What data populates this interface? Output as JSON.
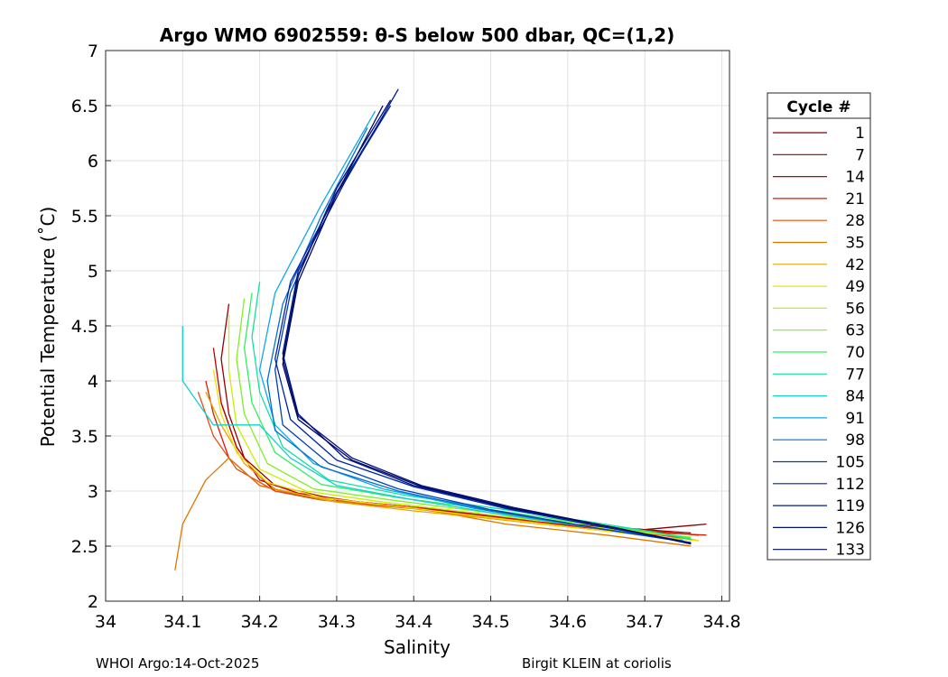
{
  "chart_data": {
    "type": "line",
    "title": "Argo WMO 6902559: θ-S below 500 dbar,  QC=(1,2)",
    "xlabel": "Salinity",
    "ylabel": "Potential Temperature (˚C)",
    "xlim": [
      34.0,
      34.81
    ],
    "ylim": [
      2.0,
      7.0
    ],
    "xticks": [
      "34",
      "34.1",
      "34.2",
      "34.3",
      "34.4",
      "34.5",
      "34.6",
      "34.7",
      "34.8"
    ],
    "yticks": [
      "2",
      "2.5",
      "3",
      "3.5",
      "4",
      "4.5",
      "5",
      "5.5",
      "6",
      "6.5",
      "7"
    ],
    "grid": true,
    "legend_title": "Cycle #",
    "legend_position": "outside-right",
    "legend": [
      {
        "label": "1",
        "color": "#800000"
      },
      {
        "label": "7",
        "color": "#990000"
      },
      {
        "label": "14",
        "color": "#c00000"
      },
      {
        "label": "21",
        "color": "#dd1a00"
      },
      {
        "label": "28",
        "color": "#e64d10"
      },
      {
        "label": "35",
        "color": "#dd7700"
      },
      {
        "label": "42",
        "color": "#e6a800"
      },
      {
        "label": "49",
        "color": "#f2e000"
      },
      {
        "label": "56",
        "color": "#c8f000"
      },
      {
        "label": "63",
        "color": "#80f020"
      },
      {
        "label": "70",
        "color": "#30f060"
      },
      {
        "label": "77",
        "color": "#10e0a0"
      },
      {
        "label": "84",
        "color": "#10d0d0"
      },
      {
        "label": "91",
        "color": "#10a8e8"
      },
      {
        "label": "98",
        "color": "#0070d0"
      },
      {
        "label": "105",
        "color": "#0040b8"
      },
      {
        "label": "112",
        "color": "#0020a8"
      },
      {
        "label": "119",
        "color": "#001890"
      },
      {
        "label": "126",
        "color": "#001078"
      },
      {
        "label": "133",
        "color": "#000860"
      }
    ],
    "series": [
      {
        "name": "1",
        "x": [
          34.15,
          34.16,
          34.17,
          34.19,
          34.22,
          34.28,
          34.4,
          34.55,
          34.7,
          34.78
        ],
        "y": [
          3.8,
          3.6,
          3.4,
          3.2,
          3.0,
          2.92,
          2.85,
          2.72,
          2.65,
          2.7
        ]
      },
      {
        "name": "7",
        "x": [
          34.16,
          34.15,
          34.16,
          34.18,
          34.22,
          34.3,
          34.42,
          34.56,
          34.68,
          34.76
        ],
        "y": [
          4.7,
          4.2,
          3.7,
          3.3,
          3.05,
          2.92,
          2.84,
          2.72,
          2.66,
          2.62
        ]
      },
      {
        "name": "14",
        "x": [
          34.14,
          34.15,
          34.17,
          34.2,
          34.25,
          34.33,
          34.45,
          34.58,
          34.7,
          34.77
        ],
        "y": [
          4.3,
          3.8,
          3.4,
          3.1,
          2.98,
          2.9,
          2.82,
          2.7,
          2.64,
          2.6
        ]
      },
      {
        "name": "21",
        "x": [
          34.13,
          34.14,
          34.16,
          34.2,
          34.26,
          34.36,
          34.48,
          34.6,
          34.72,
          34.78
        ],
        "y": [
          4.0,
          3.7,
          3.3,
          3.05,
          2.95,
          2.88,
          2.8,
          2.68,
          2.62,
          2.6
        ]
      },
      {
        "name": "28",
        "x": [
          34.12,
          34.14,
          34.17,
          34.22,
          34.3,
          34.4,
          34.5,
          34.62,
          34.72,
          34.77
        ],
        "y": [
          3.9,
          3.5,
          3.2,
          3.0,
          2.9,
          2.84,
          2.75,
          2.66,
          2.6,
          2.55
        ]
      },
      {
        "name": "35",
        "x": [
          34.09,
          34.1,
          34.13,
          34.16,
          34.2,
          34.28,
          34.4,
          34.52,
          34.65,
          34.76
        ],
        "y": [
          2.28,
          2.7,
          3.1,
          3.3,
          3.05,
          2.92,
          2.85,
          2.7,
          2.6,
          2.5
        ]
      },
      {
        "name": "42",
        "x": [
          34.13,
          34.15,
          34.18,
          34.22,
          34.3,
          34.4,
          34.5,
          34.62,
          34.72,
          34.77
        ],
        "y": [
          3.9,
          3.6,
          3.25,
          3.02,
          2.9,
          2.82,
          2.75,
          2.66,
          2.58,
          2.55
        ]
      },
      {
        "name": "49",
        "x": [
          34.14,
          34.15,
          34.17,
          34.21,
          34.28,
          34.38,
          34.5,
          34.62,
          34.72,
          34.77
        ],
        "y": [
          4.1,
          3.7,
          3.35,
          3.08,
          2.94,
          2.86,
          2.76,
          2.66,
          2.58,
          2.55
        ]
      },
      {
        "name": "56",
        "x": [
          34.16,
          34.16,
          34.17,
          34.2,
          34.26,
          34.36,
          34.48,
          34.6,
          34.7,
          34.76
        ],
        "y": [
          4.6,
          4.1,
          3.6,
          3.2,
          3.0,
          2.9,
          2.8,
          2.7,
          2.62,
          2.58
        ]
      },
      {
        "name": "63",
        "x": [
          34.18,
          34.17,
          34.18,
          34.21,
          34.27,
          34.37,
          34.48,
          34.6,
          34.7,
          34.76
        ],
        "y": [
          4.75,
          4.2,
          3.7,
          3.25,
          3.02,
          2.92,
          2.82,
          2.72,
          2.63,
          2.58
        ]
      },
      {
        "name": "70",
        "x": [
          34.19,
          34.18,
          34.19,
          34.22,
          34.28,
          34.38,
          34.49,
          34.61,
          34.71,
          34.76
        ],
        "y": [
          4.8,
          4.3,
          3.8,
          3.35,
          3.06,
          2.94,
          2.84,
          2.72,
          2.63,
          2.57
        ]
      },
      {
        "name": "77",
        "x": [
          34.2,
          34.19,
          34.2,
          34.23,
          34.29,
          34.39,
          34.5,
          34.62,
          34.71,
          34.76
        ],
        "y": [
          4.9,
          4.4,
          3.9,
          3.4,
          3.1,
          2.96,
          2.85,
          2.73,
          2.63,
          2.56
        ]
      },
      {
        "name": "84",
        "x": [
          34.1,
          34.1,
          34.14,
          34.2,
          34.24,
          34.3,
          34.4,
          34.52,
          34.64,
          34.74
        ],
        "y": [
          4.5,
          4.0,
          3.6,
          3.6,
          3.3,
          3.05,
          2.92,
          2.78,
          2.66,
          2.56
        ]
      },
      {
        "name": "91",
        "x": [
          34.35,
          34.28,
          34.22,
          34.2,
          34.22,
          34.27,
          34.36,
          34.48,
          34.62,
          34.75
        ],
        "y": [
          6.45,
          5.6,
          4.8,
          4.1,
          3.6,
          3.25,
          3.02,
          2.84,
          2.68,
          2.55
        ]
      },
      {
        "name": "98",
        "x": [
          34.34,
          34.28,
          34.23,
          34.21,
          34.22,
          34.28,
          34.38,
          34.5,
          34.64,
          34.76
        ],
        "y": [
          6.3,
          5.5,
          4.7,
          4.0,
          3.55,
          3.22,
          3.0,
          2.82,
          2.66,
          2.53
        ]
      },
      {
        "name": "105",
        "x": [
          34.36,
          34.29,
          34.24,
          34.22,
          34.23,
          34.29,
          34.38,
          34.5,
          34.64,
          34.76
        ],
        "y": [
          6.4,
          5.6,
          4.8,
          4.1,
          3.6,
          3.25,
          3.02,
          2.83,
          2.66,
          2.53
        ]
      },
      {
        "name": "112",
        "x": [
          34.37,
          34.3,
          34.24,
          34.22,
          34.24,
          34.3,
          34.4,
          34.52,
          34.65,
          34.76
        ],
        "y": [
          6.5,
          5.7,
          4.9,
          4.2,
          3.65,
          3.28,
          3.04,
          2.84,
          2.67,
          2.53
        ]
      },
      {
        "name": "119",
        "x": [
          34.38,
          34.31,
          34.25,
          34.23,
          34.25,
          34.31,
          34.4,
          34.52,
          34.65,
          34.76
        ],
        "y": [
          6.65,
          5.8,
          5.0,
          4.25,
          3.7,
          3.3,
          3.05,
          2.85,
          2.68,
          2.53
        ]
      },
      {
        "name": "126",
        "x": [
          34.37,
          34.3,
          34.25,
          34.23,
          34.25,
          34.32,
          34.41,
          34.53,
          34.66,
          34.76
        ],
        "y": [
          6.55,
          5.75,
          4.95,
          4.2,
          3.68,
          3.3,
          3.05,
          2.85,
          2.67,
          2.52
        ]
      },
      {
        "name": "133",
        "x": [
          34.36,
          34.3,
          34.25,
          34.23,
          34.25,
          34.32,
          34.41,
          34.53,
          34.66,
          34.76
        ],
        "y": [
          6.5,
          5.7,
          4.9,
          4.15,
          3.65,
          3.28,
          3.04,
          2.84,
          2.67,
          2.52
        ]
      }
    ]
  },
  "footer": {
    "left": "WHOI Argo:14-Oct-2025",
    "right": "Birgit KLEIN at coriolis"
  }
}
